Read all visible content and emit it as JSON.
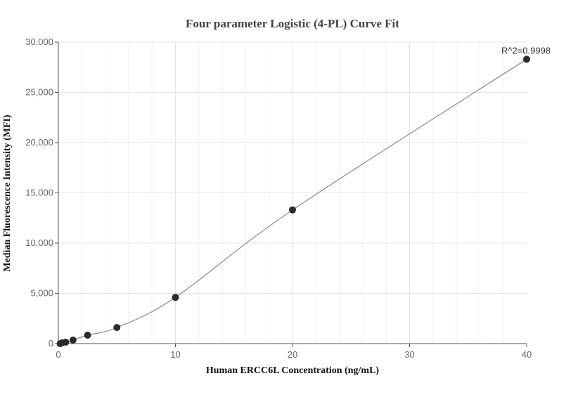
{
  "chart_data": {
    "type": "scatter",
    "title": "Four parameter Logistic (4-PL) Curve Fit",
    "xlabel": "Human ERCC6L Concentration (ng/mL)",
    "ylabel": "Median Fluorescence Intensity (MFI)",
    "xlim": [
      0,
      40
    ],
    "ylim": [
      0,
      30000
    ],
    "xticks": [
      "0",
      "10",
      "20",
      "30",
      "40"
    ],
    "yticks": [
      "0",
      "5,000",
      "10,000",
      "15,000",
      "20,000",
      "25,000",
      "30,000"
    ],
    "grid": true,
    "points": {
      "x": [
        0.156,
        0.3125,
        0.625,
        1.25,
        2.5,
        5,
        10,
        20,
        40
      ],
      "y": [
        0,
        70,
        140,
        350,
        840,
        1600,
        4600,
        13300,
        28300
      ]
    },
    "fit_line": true,
    "annotation": "R^2=0.9998",
    "colors": {
      "points": "#2b2b2b",
      "line": "#888888",
      "grid": "#e6e8f0"
    }
  }
}
